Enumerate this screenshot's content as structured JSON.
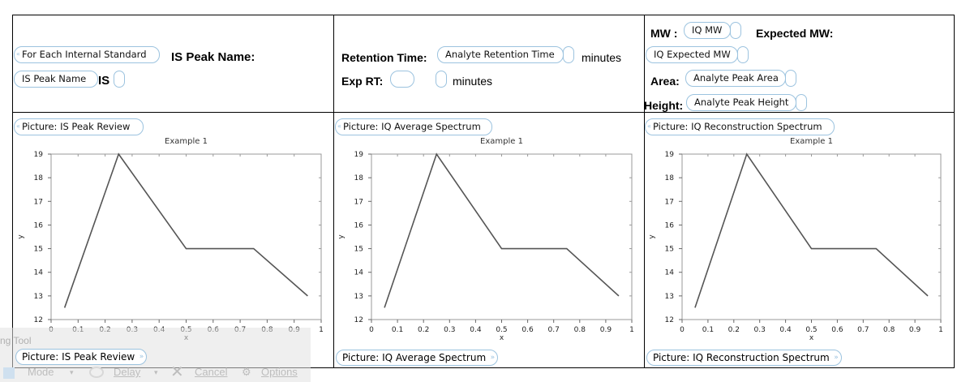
{
  "row1": {
    "col1": {
      "loop_field": "For Each Internal Standard",
      "label": "IS Peak Name:",
      "name_field": "IS Peak Name",
      "name_suffix": "IS"
    },
    "col2": {
      "rt_label": "Retention Time:",
      "rt_field": "Analyte Retention Time",
      "rt_unit": "minutes",
      "exp_label": "Exp RT:",
      "exp_field": "",
      "exp_unit": "minutes"
    },
    "col3": {
      "mw_label": "MW :",
      "mw_field": "IQ MW",
      "exp_mw_label": "Expected MW:",
      "exp_mw_field": "IQ Expected MW",
      "area_label": "Area:",
      "area_field": "Analyte Peak Area",
      "height_label": "Height:",
      "height_field": "Analyte Peak Height"
    }
  },
  "pictures": [
    {
      "start": "Picture: IS Peak Review",
      "end": "Picture: IS Peak Review"
    },
    {
      "start": "Picture: IQ Average Spectrum",
      "end": "Picture: IQ Average Spectrum"
    },
    {
      "start": "Picture: IQ Reconstruction Spectrum",
      "end": "Picture: IQ Reconstruction Spectrum"
    }
  ],
  "chart_data": [
    {
      "type": "line",
      "title": "Example 1",
      "xlabel": "x",
      "ylabel": "y",
      "xlim": [
        0,
        1
      ],
      "ylim": [
        12,
        19
      ],
      "x": [
        0.05,
        0.25,
        0.5,
        0.75,
        0.95
      ],
      "y": [
        12.5,
        19,
        15,
        15,
        13
      ],
      "xticks": [
        "0",
        "0.1",
        "0.2",
        "0.3",
        "0.4",
        "0.5",
        "0.6",
        "0.7",
        "0.8",
        "0.9",
        "1"
      ],
      "yticks": [
        "12",
        "13",
        "14",
        "15",
        "16",
        "17",
        "18",
        "19"
      ]
    },
    {
      "type": "line",
      "title": "Example 1",
      "xlabel": "x",
      "ylabel": "y",
      "xlim": [
        0,
        1
      ],
      "ylim": [
        12,
        19
      ],
      "x": [
        0.05,
        0.25,
        0.5,
        0.75,
        0.95
      ],
      "y": [
        12.5,
        19,
        15,
        15,
        13
      ],
      "xticks": [
        "0",
        "0.1",
        "0.2",
        "0.3",
        "0.4",
        "0.5",
        "0.6",
        "0.7",
        "0.8",
        "0.9",
        "1"
      ],
      "yticks": [
        "12",
        "13",
        "14",
        "15",
        "16",
        "17",
        "18",
        "19"
      ]
    },
    {
      "type": "line",
      "title": "Example 1",
      "xlabel": "x",
      "ylabel": "y",
      "xlim": [
        0,
        1
      ],
      "ylim": [
        12,
        19
      ],
      "x": [
        0.05,
        0.25,
        0.5,
        0.75,
        0.95
      ],
      "y": [
        12.5,
        19,
        15,
        15,
        13
      ],
      "xticks": [
        "0",
        "0.1",
        "0.2",
        "0.3",
        "0.4",
        "0.5",
        "0.6",
        "0.7",
        "0.8",
        "0.9",
        "1"
      ],
      "yticks": [
        "12",
        "13",
        "14",
        "15",
        "16",
        "17",
        "18",
        "19"
      ]
    }
  ],
  "snipping_tool": {
    "title": "ng Tool",
    "mode": "Mode",
    "delay": "Delay",
    "cancel": "Cancel",
    "options": "Options",
    "mode_icon": "scissors-icon",
    "delay_icon": "clock-icon",
    "cancel_icon": "close-icon",
    "options_icon": "gear-icon"
  }
}
